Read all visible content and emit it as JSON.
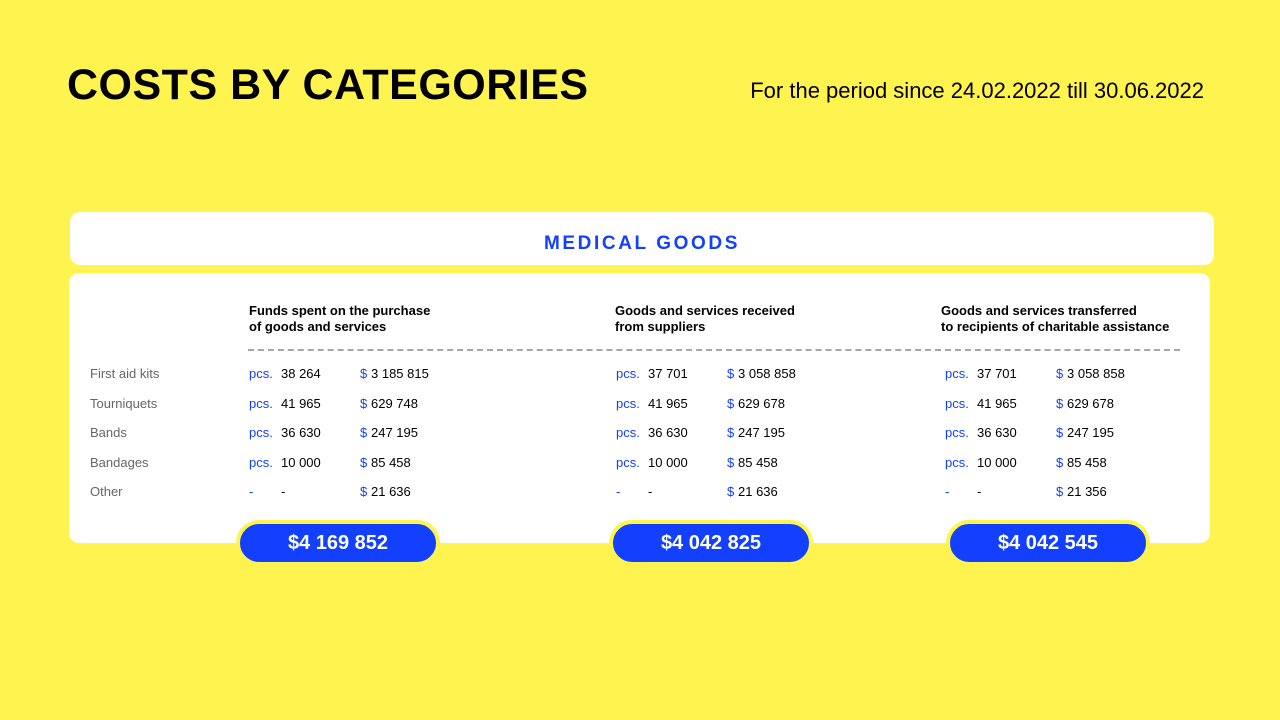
{
  "title": "COSTS BY CATEGORIES",
  "period": "For the period since 24.02.2022 till 30.06.2022",
  "section": "MEDICAL GOODS",
  "row_labels": [
    "First aid kits",
    "Tourniquets",
    "Bands",
    "Bandages",
    "Other"
  ],
  "columns": [
    {
      "heading": [
        "Funds spent on the purchase",
        "of goods and services"
      ],
      "rows": [
        {
          "unit": "pcs.",
          "qty": "38 264",
          "cur": "$",
          "amount": "3 185 815"
        },
        {
          "unit": "pcs.",
          "qty": "41 965",
          "cur": "$",
          "amount": "629 748"
        },
        {
          "unit": "pcs.",
          "qty": "36 630",
          "cur": "$",
          "amount": "247 195"
        },
        {
          "unit": "pcs.",
          "qty": "10 000",
          "cur": "$",
          "amount": "85 458"
        },
        {
          "unit": "-",
          "qty": "-",
          "cur": "$",
          "amount": "21 636"
        }
      ],
      "total": "$4 169 852"
    },
    {
      "heading": [
        "Goods and services received",
        "from suppliers"
      ],
      "rows": [
        {
          "unit": "pcs.",
          "qty": "37 701",
          "cur": "$",
          "amount": "3 058 858"
        },
        {
          "unit": "pcs.",
          "qty": "41 965",
          "cur": "$",
          "amount": "629 678"
        },
        {
          "unit": "pcs.",
          "qty": "36 630",
          "cur": "$",
          "amount": "247 195"
        },
        {
          "unit": "pcs.",
          "qty": "10 000",
          "cur": "$",
          "amount": "85 458"
        },
        {
          "unit": "-",
          "qty": "-",
          "cur": "$",
          "amount": "21 636"
        }
      ],
      "total": "$4 042 825"
    },
    {
      "heading": [
        "Goods and services transferred",
        "to recipients of charitable assistance"
      ],
      "rows": [
        {
          "unit": "pcs.",
          "qty": "37 701",
          "cur": "$",
          "amount": "3 058 858"
        },
        {
          "unit": "pcs.",
          "qty": "41 965",
          "cur": "$",
          "amount": "629 678"
        },
        {
          "unit": "pcs.",
          "qty": "36 630",
          "cur": "$",
          "amount": "247 195"
        },
        {
          "unit": "pcs.",
          "qty": "10 000",
          "cur": "$",
          "amount": "85 458"
        },
        {
          "unit": "-",
          "qty": "-",
          "cur": "$",
          "amount": "21 356"
        }
      ],
      "total": "$4 042 545"
    }
  ]
}
